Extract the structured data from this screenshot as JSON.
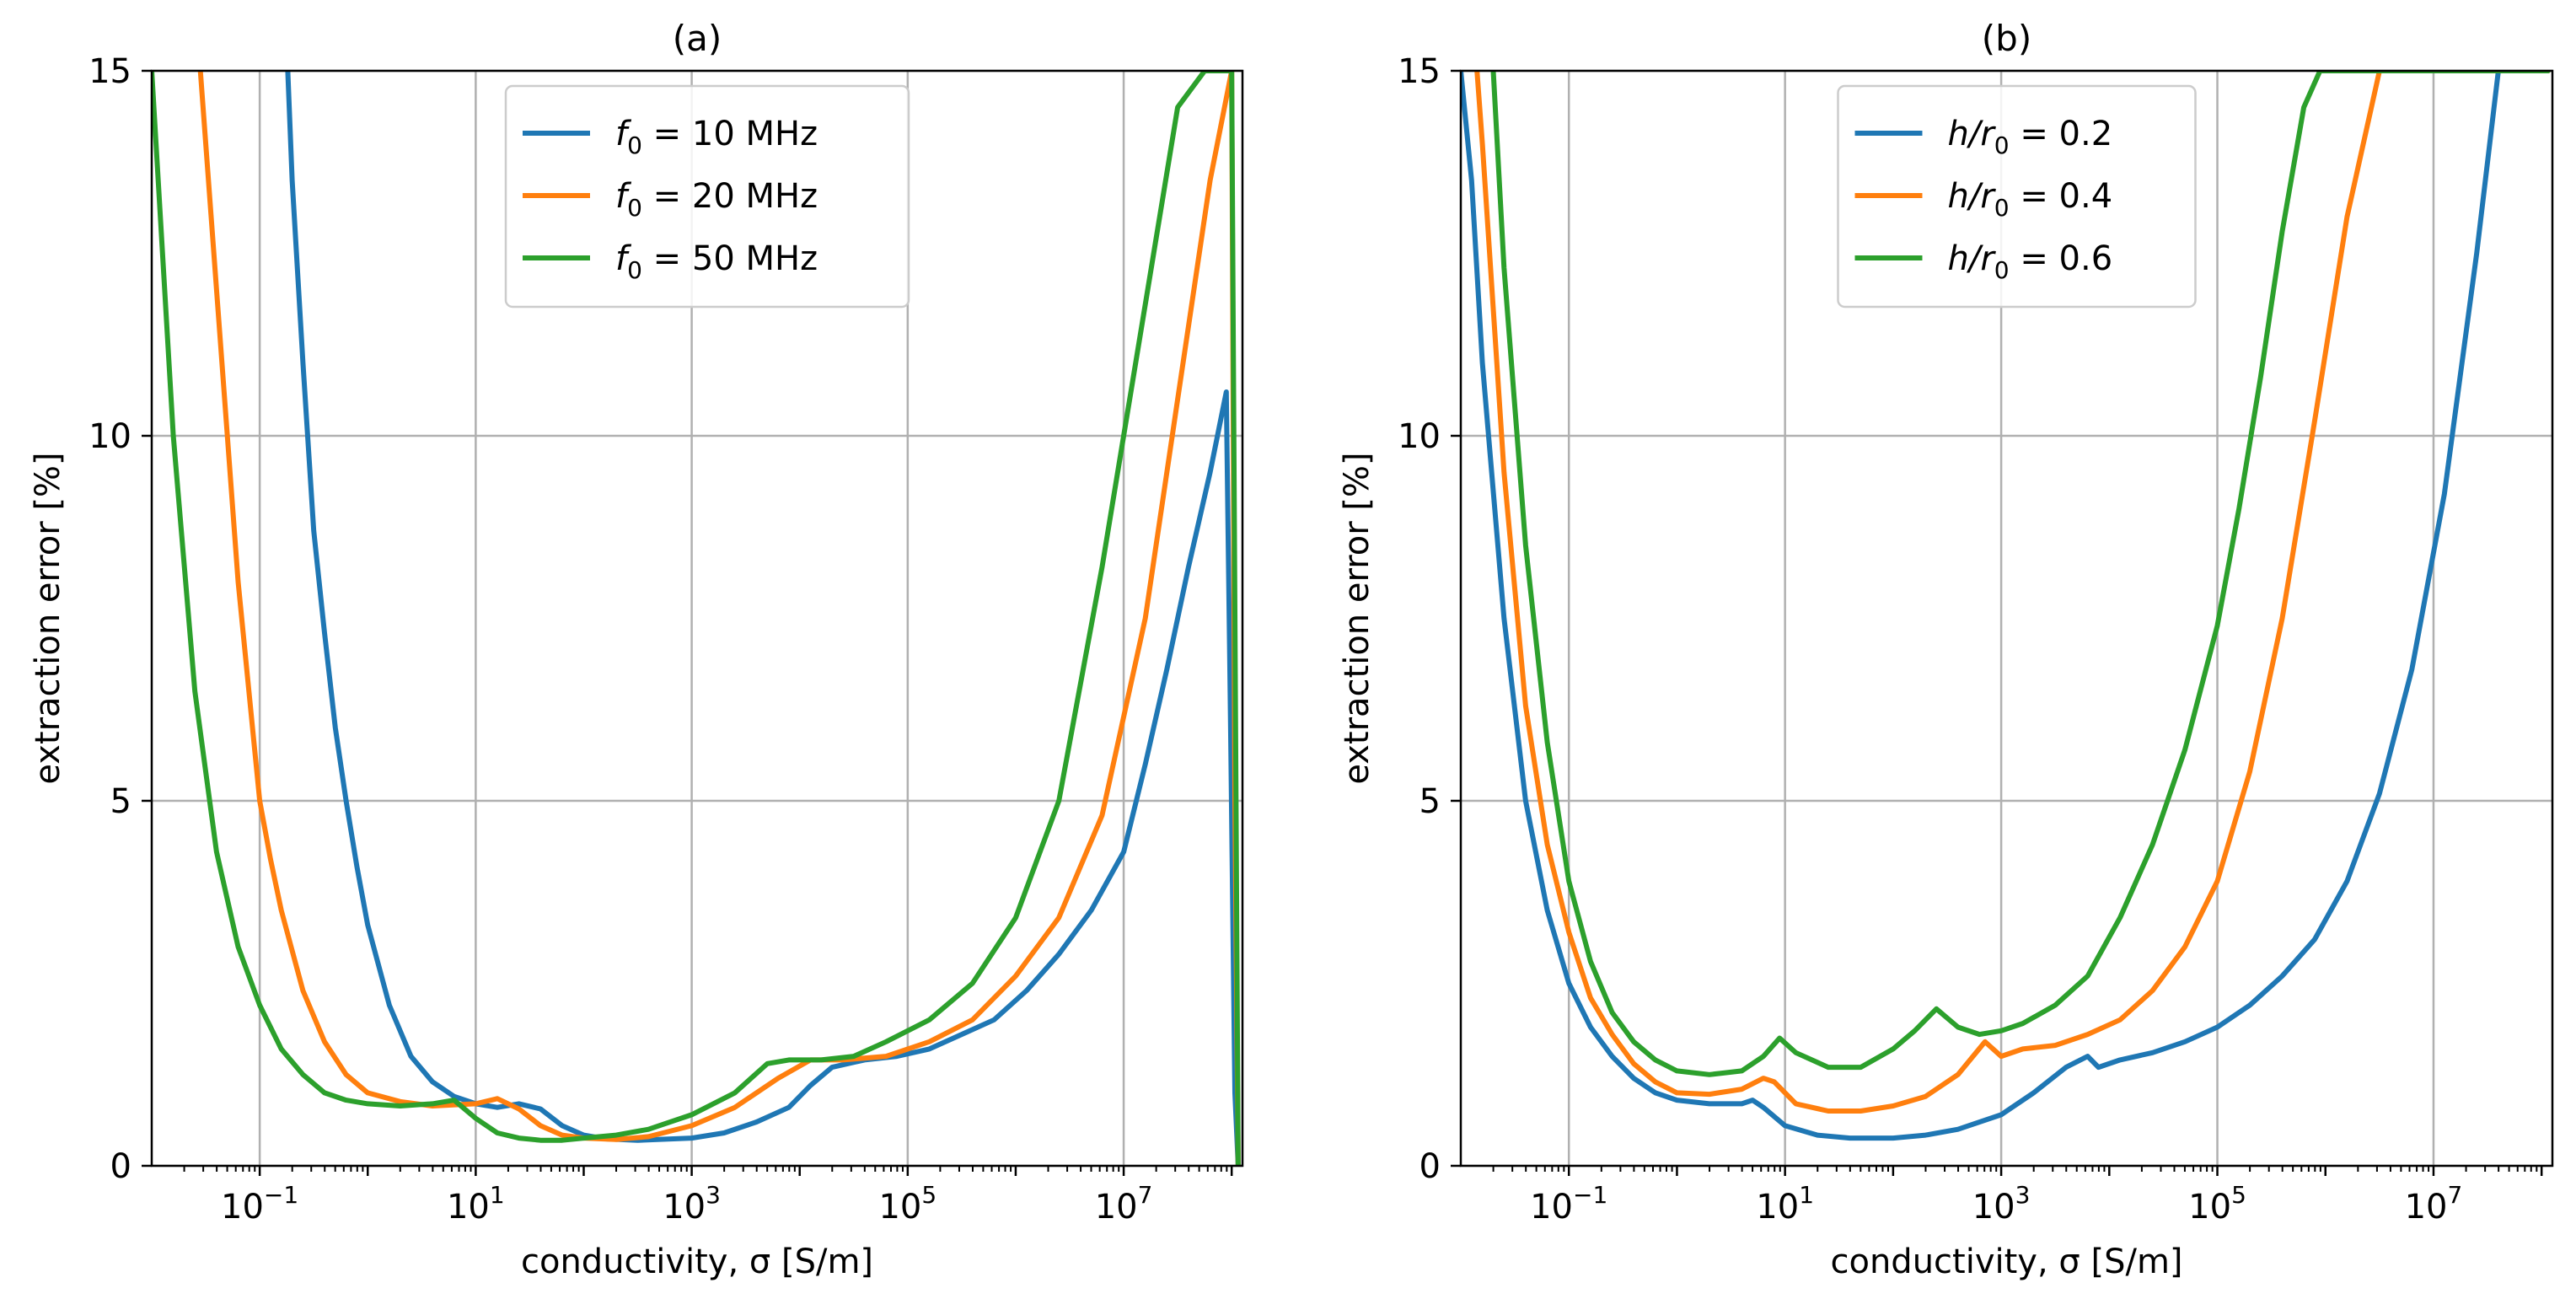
{
  "chart_data": [
    {
      "type": "line",
      "title": "(a)",
      "xlabel": "conductivity, σ [S/m]",
      "ylabel": "extraction error [%]",
      "xscale": "log",
      "xlim_log10": [
        -2,
        8.1
      ],
      "ylim": [
        0,
        15
      ],
      "grid": true,
      "legend_position": "top-center",
      "x_ticks": [
        {
          "label": "10",
          "exp": "−1",
          "value": -1
        },
        {
          "label": "10",
          "exp": "1",
          "value": 1
        },
        {
          "label": "10",
          "exp": "3",
          "value": 3
        },
        {
          "label": "10",
          "exp": "5",
          "value": 5
        },
        {
          "label": "10",
          "exp": "7",
          "value": 7
        }
      ],
      "y_ticks": [
        {
          "label": "0",
          "value": 0
        },
        {
          "label": "5",
          "value": 5
        },
        {
          "label": "10",
          "value": 10
        },
        {
          "label": "15",
          "value": 15
        }
      ],
      "series": [
        {
          "name_sym": "f",
          "name_sub": "0",
          "name_rest": " = 10 MHz",
          "color": "#1f77b4",
          "log10x": [
            -0.74,
            -0.7,
            -0.6,
            -0.5,
            -0.4,
            -0.3,
            -0.2,
            -0.1,
            0,
            0.2,
            0.4,
            0.6,
            0.8,
            1,
            1.2,
            1.4,
            1.6,
            1.8,
            2,
            2.2,
            2.5,
            3,
            3.3,
            3.6,
            3.9,
            4.1,
            4.3,
            4.6,
            4.9,
            5.2,
            5.5,
            5.8,
            6.1,
            6.4,
            6.7,
            7,
            7.2,
            7.4,
            7.6,
            7.8,
            7.95,
            7.99,
            8.03,
            8.06
          ],
          "y": [
            15,
            13.5,
            11,
            8.7,
            7.3,
            6,
            5,
            4.1,
            3.3,
            2.2,
            1.5,
            1.15,
            0.95,
            0.85,
            0.8,
            0.85,
            0.78,
            0.55,
            0.42,
            0.37,
            0.35,
            0.38,
            0.45,
            0.6,
            0.8,
            1.1,
            1.35,
            1.45,
            1.5,
            1.6,
            1.8,
            2.0,
            2.4,
            2.9,
            3.5,
            4.3,
            5.5,
            6.8,
            8.2,
            9.5,
            10.6,
            6,
            1,
            0
          ]
        },
        {
          "name_sym": "f",
          "name_sub": "0",
          "name_rest": " = 20 MHz",
          "color": "#ff7f0e",
          "log10x": [
            -1.55,
            -1.4,
            -1.2,
            -1,
            -0.9,
            -0.8,
            -0.6,
            -0.4,
            -0.2,
            0,
            0.3,
            0.6,
            1,
            1.2,
            1.4,
            1.6,
            1.8,
            2,
            2.3,
            2.6,
            3,
            3.4,
            3.8,
            4.1,
            4.4,
            4.8,
            5.2,
            5.6,
            6,
            6.4,
            6.8,
            7.2,
            7.5,
            7.8,
            8.0,
            8.03,
            8.06
          ],
          "y": [
            15,
            12,
            8,
            5,
            4.2,
            3.5,
            2.4,
            1.7,
            1.25,
            1.0,
            0.88,
            0.82,
            0.85,
            0.92,
            0.78,
            0.55,
            0.42,
            0.38,
            0.36,
            0.4,
            0.55,
            0.8,
            1.2,
            1.45,
            1.45,
            1.5,
            1.7,
            2.0,
            2.6,
            3.4,
            4.8,
            7.5,
            10.5,
            13.5,
            15,
            5,
            0
          ]
        },
        {
          "name_sym": "f",
          "name_sub": "0",
          "name_rest": " = 50 MHz",
          "color": "#2ca02c",
          "log10x": [
            -2,
            -1.8,
            -1.6,
            -1.4,
            -1.2,
            -1,
            -0.8,
            -0.6,
            -0.4,
            -0.2,
            0,
            0.3,
            0.6,
            0.8,
            1,
            1.2,
            1.4,
            1.6,
            1.8,
            2,
            2.3,
            2.6,
            3,
            3.4,
            3.7,
            3.9,
            4.2,
            4.5,
            4.8,
            5.2,
            5.6,
            6,
            6.4,
            6.8,
            7.2,
            7.5,
            7.75,
            7.9,
            8.0,
            8.06
          ],
          "y": [
            15,
            10,
            6.5,
            4.3,
            3.0,
            2.2,
            1.6,
            1.25,
            1.0,
            0.9,
            0.85,
            0.82,
            0.85,
            0.9,
            0.65,
            0.45,
            0.38,
            0.35,
            0.35,
            0.38,
            0.42,
            0.5,
            0.7,
            1.0,
            1.4,
            1.45,
            1.45,
            1.5,
            1.7,
            2.0,
            2.5,
            3.4,
            5.0,
            8.2,
            11.8,
            14.5,
            15,
            15,
            15,
            0
          ]
        }
      ]
    },
    {
      "type": "line",
      "title": "(b)",
      "xlabel": "conductivity, σ [S/m]",
      "ylabel": "extraction error [%]",
      "xscale": "log",
      "xlim_log10": [
        -2,
        8.1
      ],
      "ylim": [
        0,
        15
      ],
      "grid": true,
      "legend_position": "top-center",
      "x_ticks": [
        {
          "label": "10",
          "exp": "−1",
          "value": -1
        },
        {
          "label": "10",
          "exp": "1",
          "value": 1
        },
        {
          "label": "10",
          "exp": "3",
          "value": 3
        },
        {
          "label": "10",
          "exp": "5",
          "value": 5
        },
        {
          "label": "10",
          "exp": "7",
          "value": 7
        }
      ],
      "y_ticks": [
        {
          "label": "0",
          "value": 0
        },
        {
          "label": "5",
          "value": 5
        },
        {
          "label": "10",
          "value": 10
        },
        {
          "label": "15",
          "value": 15
        }
      ],
      "series": [
        {
          "name_sym": "h/r",
          "name_sub": "0",
          "name_rest": " = 0.2",
          "color": "#1f77b4",
          "log10x": [
            -2,
            -1.9,
            -1.8,
            -1.6,
            -1.4,
            -1.2,
            -1,
            -0.8,
            -0.6,
            -0.4,
            -0.2,
            0,
            0.3,
            0.6,
            0.7,
            0.8,
            1,
            1.3,
            1.6,
            2,
            2.3,
            2.6,
            3,
            3.3,
            3.6,
            3.8,
            3.9,
            4.1,
            4.4,
            4.7,
            5,
            5.3,
            5.6,
            5.9,
            6.2,
            6.5,
            6.8,
            7.1,
            7.4,
            7.6,
            7.8,
            8.06
          ],
          "y": [
            15,
            13.5,
            11,
            7.5,
            5.0,
            3.5,
            2.5,
            1.9,
            1.5,
            1.2,
            1.0,
            0.9,
            0.85,
            0.85,
            0.9,
            0.8,
            0.55,
            0.42,
            0.38,
            0.38,
            0.42,
            0.5,
            0.7,
            1.0,
            1.35,
            1.5,
            1.35,
            1.45,
            1.55,
            1.7,
            1.9,
            2.2,
            2.6,
            3.1,
            3.9,
            5.1,
            6.8,
            9.2,
            12.5,
            15,
            15,
            15
          ]
        },
        {
          "name_sym": "h/r",
          "name_sub": "0",
          "name_rest": " = 0.4",
          "color": "#ff7f0e",
          "log10x": [
            -1.85,
            -1.8,
            -1.6,
            -1.4,
            -1.2,
            -1,
            -0.8,
            -0.6,
            -0.4,
            -0.2,
            0,
            0.3,
            0.6,
            0.8,
            0.9,
            1.1,
            1.4,
            1.7,
            2,
            2.3,
            2.6,
            2.85,
            3,
            3.2,
            3.5,
            3.8,
            4.1,
            4.4,
            4.7,
            5,
            5.3,
            5.6,
            5.9,
            6.2,
            6.5,
            6.8,
            8.06
          ],
          "y": [
            15,
            14,
            9.5,
            6.3,
            4.4,
            3.2,
            2.3,
            1.8,
            1.4,
            1.15,
            1.0,
            0.98,
            1.05,
            1.2,
            1.15,
            0.85,
            0.75,
            0.75,
            0.82,
            0.95,
            1.25,
            1.7,
            1.5,
            1.6,
            1.65,
            1.8,
            2.0,
            2.4,
            3.0,
            3.9,
            5.4,
            7.5,
            10.2,
            13,
            15,
            15,
            15
          ]
        },
        {
          "name_sym": "h/r",
          "name_sub": "0",
          "name_rest": " = 0.6",
          "color": "#2ca02c",
          "log10x": [
            -1.7,
            -1.6,
            -1.4,
            -1.2,
            -1,
            -0.8,
            -0.6,
            -0.4,
            -0.2,
            0,
            0.3,
            0.6,
            0.8,
            0.95,
            1.1,
            1.4,
            1.7,
            2,
            2.2,
            2.4,
            2.6,
            2.8,
            3,
            3.2,
            3.5,
            3.8,
            4.1,
            4.4,
            4.7,
            5,
            5.2,
            5.4,
            5.6,
            5.8,
            5.95,
            8.06
          ],
          "y": [
            15,
            12.3,
            8.5,
            5.8,
            3.9,
            2.8,
            2.1,
            1.7,
            1.45,
            1.3,
            1.25,
            1.3,
            1.5,
            1.75,
            1.55,
            1.35,
            1.35,
            1.6,
            1.85,
            2.15,
            1.9,
            1.8,
            1.85,
            1.95,
            2.2,
            2.6,
            3.4,
            4.4,
            5.7,
            7.4,
            9.0,
            10.8,
            12.8,
            14.5,
            15,
            15
          ]
        }
      ]
    }
  ]
}
